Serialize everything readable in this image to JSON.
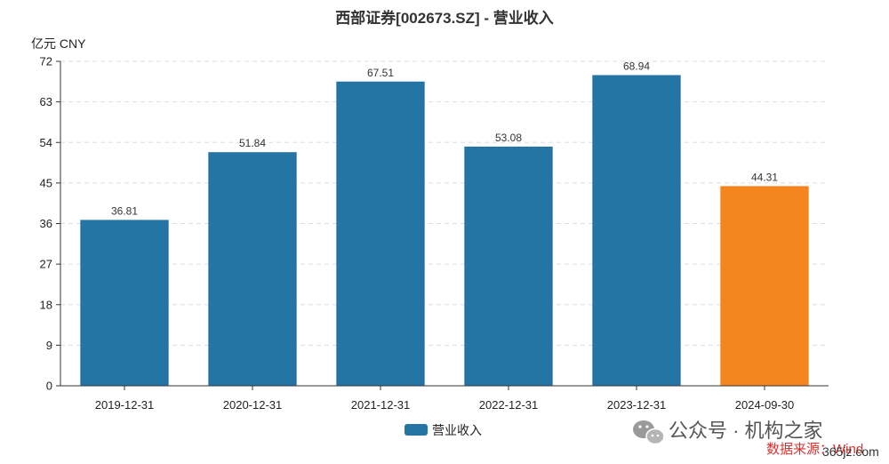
{
  "chart_data": {
    "type": "bar",
    "title": "西部证券[002673.SZ] - 营业收入",
    "unit_label": "亿元  CNY",
    "categories": [
      "2019-12-31",
      "2020-12-31",
      "2021-12-31",
      "2022-12-31",
      "2023-12-31",
      "2024-09-30"
    ],
    "series": [
      {
        "name": "营业收入",
        "values": [
          36.81,
          51.84,
          67.51,
          53.08,
          68.94,
          44.31
        ]
      }
    ],
    "data_labels": [
      "36.81",
      "51.84",
      "67.51",
      "53.08",
      "68.94",
      "44.31"
    ],
    "ylim": [
      0,
      72
    ],
    "yticks": [
      0,
      9,
      18,
      27,
      36,
      45,
      54,
      63,
      72
    ],
    "grid": true,
    "legend_position": "bottom",
    "colors": {
      "bar": "#2474a4",
      "highlight_bar": "#f5861f"
    },
    "highlight_index": 5
  },
  "watermark": {
    "text": "公众号 · 机构之家",
    "source": "数据来源：Wind",
    "site": "365jz.com"
  }
}
